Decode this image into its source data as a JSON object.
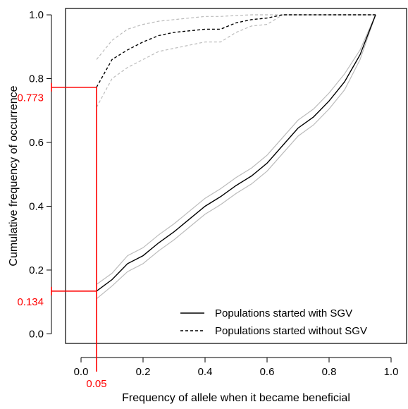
{
  "chart_data": {
    "type": "line",
    "title": "",
    "xlabel": "Frequency of allele when it became beneficial",
    "ylabel": "Cumulative frequency of occurrence",
    "xlim": [
      -0.05,
      1.05
    ],
    "ylim": [
      -0.03,
      1.02
    ],
    "xticks": [
      "0.0",
      "0.2",
      "0.4",
      "0.6",
      "0.8",
      "1.0"
    ],
    "yticks": [
      "0.0",
      "0.2",
      "0.4",
      "0.6",
      "0.8",
      "1.0"
    ],
    "grid": false,
    "legend_position": "bottom-right",
    "annotation_color": "#ff0000",
    "ci_color": "#bbbbbb",
    "annotations": {
      "x_value": 0.05,
      "x_label": "0.05",
      "y_values": [
        0.773,
        0.134
      ],
      "y_labels": [
        "0.773",
        "0.134"
      ]
    },
    "series": [
      {
        "name": "Populations started with SGV",
        "style": "solid",
        "color": "#000000",
        "x": [
          0.05,
          0.1,
          0.15,
          0.2,
          0.25,
          0.3,
          0.35,
          0.4,
          0.45,
          0.5,
          0.55,
          0.6,
          0.65,
          0.7,
          0.75,
          0.8,
          0.85,
          0.9,
          0.95
        ],
        "y": [
          0.134,
          0.17,
          0.22,
          0.245,
          0.285,
          0.32,
          0.36,
          0.4,
          0.43,
          0.465,
          0.495,
          0.535,
          0.59,
          0.645,
          0.68,
          0.73,
          0.79,
          0.875,
          1.0
        ],
        "ci_lower": [
          0.11,
          0.15,
          0.195,
          0.22,
          0.26,
          0.295,
          0.335,
          0.375,
          0.405,
          0.44,
          0.47,
          0.51,
          0.565,
          0.62,
          0.655,
          0.705,
          0.765,
          0.86,
          1.0
        ],
        "ci_upper": [
          0.155,
          0.19,
          0.245,
          0.27,
          0.31,
          0.345,
          0.385,
          0.425,
          0.455,
          0.49,
          0.52,
          0.56,
          0.615,
          0.67,
          0.705,
          0.755,
          0.815,
          0.89,
          1.0
        ]
      },
      {
        "name": "Populations started without SGV",
        "style": "dashed",
        "color": "#000000",
        "x": [
          0.05,
          0.1,
          0.15,
          0.2,
          0.25,
          0.3,
          0.35,
          0.4,
          0.45,
          0.5,
          0.55,
          0.6,
          0.65,
          0.7,
          0.75,
          0.8,
          0.85,
          0.9,
          0.95
        ],
        "y": [
          0.773,
          0.86,
          0.89,
          0.915,
          0.935,
          0.945,
          0.95,
          0.955,
          0.955,
          0.975,
          0.985,
          0.99,
          1.0,
          1.0,
          1.0,
          1.0,
          1.0,
          1.0,
          1.0
        ],
        "ci_lower": [
          0.71,
          0.8,
          0.835,
          0.86,
          0.885,
          0.895,
          0.905,
          0.915,
          0.915,
          0.945,
          0.965,
          0.97,
          1.0,
          1.0,
          1.0,
          1.0,
          1.0,
          1.0,
          1.0
        ],
        "ci_upper": [
          0.86,
          0.92,
          0.955,
          0.97,
          0.98,
          0.985,
          0.99,
          0.995,
          0.995,
          0.998,
          1.0,
          1.0,
          1.0,
          1.0,
          1.0,
          1.0,
          1.0,
          1.0,
          1.0
        ]
      }
    ]
  }
}
